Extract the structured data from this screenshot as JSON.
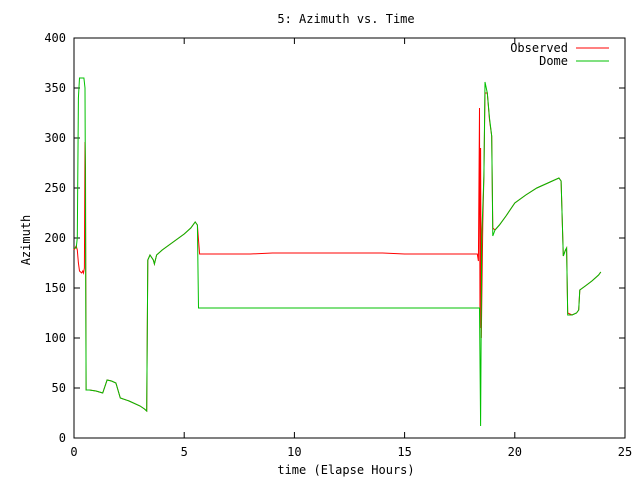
{
  "chart_data": {
    "type": "line",
    "title": "5: Azimuth vs. Time",
    "xlabel": "time (Elapse Hours)",
    "ylabel": "Azimuth",
    "xlim": [
      0,
      25
    ],
    "ylim": [
      0,
      400
    ],
    "x_ticks": [
      "0",
      "5",
      "10",
      "15",
      "20",
      "25"
    ],
    "y_ticks": [
      "0",
      "50",
      "100",
      "150",
      "200",
      "250",
      "300",
      "350",
      "400"
    ],
    "grid": false,
    "legend": "top-right",
    "series": [
      {
        "name": "Observed",
        "color": "#ff0000",
        "points": [
          [
            0.0,
            188
          ],
          [
            0.1,
            192
          ],
          [
            0.15,
            188
          ],
          [
            0.2,
            175
          ],
          [
            0.25,
            167
          ],
          [
            0.3,
            166
          ],
          [
            0.35,
            165
          ],
          [
            0.4,
            167
          ],
          [
            0.43,
            165
          ],
          [
            0.47,
            170
          ],
          [
            0.5,
            296
          ],
          [
            0.52,
            270
          ],
          [
            0.55,
            48
          ],
          [
            0.7,
            48
          ],
          [
            1.0,
            47
          ],
          [
            1.3,
            45
          ],
          [
            1.5,
            58
          ],
          [
            1.7,
            57
          ],
          [
            1.9,
            55
          ],
          [
            2.1,
            40
          ],
          [
            2.5,
            37
          ],
          [
            3.0,
            32
          ],
          [
            3.2,
            29
          ],
          [
            3.3,
            27
          ],
          [
            3.35,
            178
          ],
          [
            3.45,
            183
          ],
          [
            3.6,
            178
          ],
          [
            3.65,
            174
          ],
          [
            3.75,
            183
          ],
          [
            4.0,
            188
          ],
          [
            4.5,
            196
          ],
          [
            5.0,
            204
          ],
          [
            5.3,
            210
          ],
          [
            5.5,
            216
          ],
          [
            5.6,
            213
          ],
          [
            5.65,
            198
          ],
          [
            5.7,
            184
          ],
          [
            7.0,
            184
          ],
          [
            8.0,
            184
          ],
          [
            9.0,
            185
          ],
          [
            12.0,
            185
          ],
          [
            14.0,
            185
          ],
          [
            15.0,
            184
          ],
          [
            16.0,
            184
          ],
          [
            18.3,
            184
          ],
          [
            18.35,
            177
          ],
          [
            18.4,
            330
          ],
          [
            18.42,
            110
          ],
          [
            18.45,
            290
          ],
          [
            18.48,
            100
          ],
          [
            18.55,
            215
          ],
          [
            18.6,
            262
          ],
          [
            18.65,
            345
          ],
          [
            18.75,
            345
          ],
          [
            18.85,
            318
          ],
          [
            18.95,
            302
          ],
          [
            19.0,
            210
          ],
          [
            19.1,
            208
          ],
          [
            19.3,
            213
          ],
          [
            19.6,
            222
          ],
          [
            20.0,
            235
          ],
          [
            20.5,
            243
          ],
          [
            21.0,
            250
          ],
          [
            21.5,
            255
          ],
          [
            22.0,
            260
          ],
          [
            22.1,
            257
          ],
          [
            22.2,
            182
          ],
          [
            22.3,
            188
          ],
          [
            22.35,
            190
          ],
          [
            22.4,
            125
          ],
          [
            22.6,
            123
          ],
          [
            22.8,
            125
          ],
          [
            22.9,
            128
          ],
          [
            22.95,
            148
          ],
          [
            23.2,
            152
          ],
          [
            23.5,
            157
          ],
          [
            23.8,
            163
          ],
          [
            23.9,
            166
          ]
        ]
      },
      {
        "name": "Dome",
        "color": "#00c000",
        "points": [
          [
            0.0,
            190
          ],
          [
            0.1,
            190
          ],
          [
            0.15,
            200
          ],
          [
            0.2,
            340
          ],
          [
            0.25,
            360
          ],
          [
            0.45,
            360
          ],
          [
            0.5,
            350
          ],
          [
            0.52,
            220
          ],
          [
            0.55,
            48
          ],
          [
            0.7,
            48
          ],
          [
            1.0,
            47
          ],
          [
            1.3,
            45
          ],
          [
            1.5,
            58
          ],
          [
            1.7,
            57
          ],
          [
            1.9,
            55
          ],
          [
            2.1,
            40
          ],
          [
            2.5,
            37
          ],
          [
            3.0,
            32
          ],
          [
            3.2,
            29
          ],
          [
            3.3,
            27
          ],
          [
            3.35,
            178
          ],
          [
            3.45,
            183
          ],
          [
            3.6,
            178
          ],
          [
            3.65,
            174
          ],
          [
            3.75,
            183
          ],
          [
            4.0,
            188
          ],
          [
            4.5,
            196
          ],
          [
            5.0,
            204
          ],
          [
            5.3,
            210
          ],
          [
            5.5,
            216
          ],
          [
            5.6,
            213
          ],
          [
            5.65,
            130
          ],
          [
            7.0,
            130
          ],
          [
            10.0,
            130
          ],
          [
            14.0,
            130
          ],
          [
            16.0,
            130
          ],
          [
            18.4,
            130
          ],
          [
            18.45,
            12
          ],
          [
            18.5,
            200
          ],
          [
            18.6,
            262
          ],
          [
            18.65,
            356
          ],
          [
            18.75,
            345
          ],
          [
            18.85,
            320
          ],
          [
            18.95,
            302
          ],
          [
            19.0,
            202
          ],
          [
            19.1,
            208
          ],
          [
            19.3,
            213
          ],
          [
            19.6,
            222
          ],
          [
            20.0,
            235
          ],
          [
            20.5,
            243
          ],
          [
            21.0,
            250
          ],
          [
            21.5,
            255
          ],
          [
            22.0,
            260
          ],
          [
            22.1,
            257
          ],
          [
            22.2,
            182
          ],
          [
            22.3,
            188
          ],
          [
            22.35,
            190
          ],
          [
            22.4,
            123
          ],
          [
            22.6,
            123
          ],
          [
            22.8,
            125
          ],
          [
            22.9,
            128
          ],
          [
            22.95,
            148
          ],
          [
            23.2,
            152
          ],
          [
            23.5,
            157
          ],
          [
            23.8,
            163
          ],
          [
            23.9,
            166
          ]
        ]
      }
    ]
  }
}
